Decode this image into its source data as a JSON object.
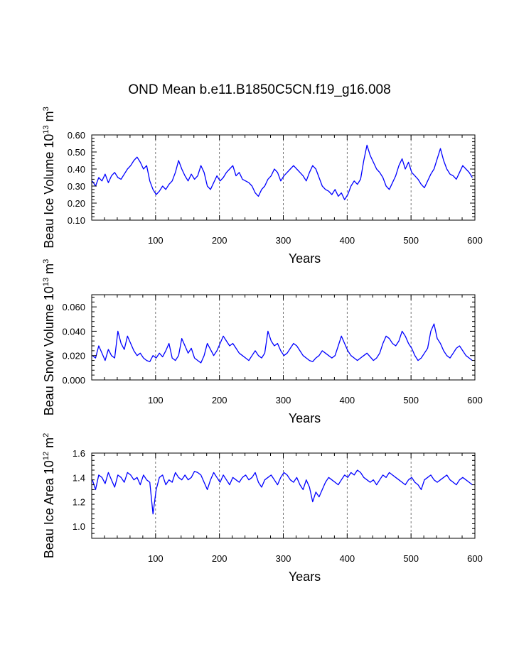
{
  "figure": {
    "title": "OND Mean b.e11.B1850C5CN.f19_g16.008"
  },
  "chart_data": [
    {
      "type": "line",
      "id": "ice-volume",
      "ylabel_main": "Beau Ice Volume 10",
      "ylabel_exp": "13",
      "ylabel_unit": " m",
      "ylabel_unit_exp": "3",
      "xlabel": "Years",
      "xlim": [
        0,
        600
      ],
      "ylim": [
        0.1,
        0.6
      ],
      "x_ticks": [
        100,
        200,
        300,
        400,
        500,
        600
      ],
      "y_ticks": [
        0.1,
        0.2,
        0.3,
        0.4,
        0.5,
        0.6
      ],
      "y_tick_labels": [
        "0.10",
        "0.20",
        "0.30",
        "0.40",
        "0.50",
        "0.60"
      ],
      "grid_x": [
        100,
        200,
        300,
        400,
        500
      ],
      "series": [
        {
          "name": "Beau Ice Volume",
          "color": "#0000ff",
          "x_start": 1,
          "x_step": 5,
          "values": [
            0.33,
            0.3,
            0.35,
            0.33,
            0.37,
            0.32,
            0.36,
            0.38,
            0.35,
            0.34,
            0.37,
            0.4,
            0.42,
            0.45,
            0.47,
            0.44,
            0.4,
            0.42,
            0.33,
            0.28,
            0.25,
            0.27,
            0.3,
            0.28,
            0.31,
            0.33,
            0.38,
            0.45,
            0.4,
            0.36,
            0.33,
            0.37,
            0.34,
            0.36,
            0.42,
            0.38,
            0.3,
            0.28,
            0.32,
            0.36,
            0.33,
            0.35,
            0.38,
            0.4,
            0.42,
            0.36,
            0.38,
            0.34,
            0.33,
            0.32,
            0.3,
            0.26,
            0.24,
            0.28,
            0.3,
            0.34,
            0.36,
            0.4,
            0.38,
            0.33,
            0.36,
            0.38,
            0.4,
            0.42,
            0.4,
            0.38,
            0.36,
            0.33,
            0.38,
            0.42,
            0.4,
            0.35,
            0.3,
            0.28,
            0.27,
            0.25,
            0.28,
            0.24,
            0.26,
            0.22,
            0.25,
            0.3,
            0.33,
            0.31,
            0.34,
            0.45,
            0.54,
            0.48,
            0.44,
            0.4,
            0.38,
            0.35,
            0.3,
            0.28,
            0.32,
            0.36,
            0.42,
            0.46,
            0.4,
            0.44,
            0.38,
            0.36,
            0.34,
            0.31,
            0.29,
            0.33,
            0.37,
            0.4,
            0.46,
            0.52,
            0.45,
            0.4,
            0.37,
            0.36,
            0.34,
            0.38,
            0.42,
            0.4,
            0.38,
            0.35
          ]
        }
      ]
    },
    {
      "type": "line",
      "id": "snow-volume",
      "ylabel_main": "Beau Snow Volume 10",
      "ylabel_exp": "13",
      "ylabel_unit": " m",
      "ylabel_unit_exp": "3",
      "xlabel": "Years",
      "xlim": [
        0,
        600
      ],
      "ylim": [
        0.0,
        0.07
      ],
      "x_ticks": [
        100,
        200,
        300,
        400,
        500,
        600
      ],
      "y_ticks": [
        0.0,
        0.02,
        0.04,
        0.06
      ],
      "y_tick_labels": [
        "0.000",
        "0.020",
        "0.040",
        "0.060"
      ],
      "grid_x": [
        100,
        200,
        300,
        400,
        500
      ],
      "series": [
        {
          "name": "Beau Snow Volume",
          "color": "#0000ff",
          "x_start": 1,
          "x_step": 5,
          "values": [
            0.02,
            0.018,
            0.028,
            0.022,
            0.016,
            0.025,
            0.02,
            0.018,
            0.04,
            0.03,
            0.025,
            0.036,
            0.03,
            0.024,
            0.02,
            0.022,
            0.018,
            0.016,
            0.015,
            0.02,
            0.018,
            0.022,
            0.019,
            0.024,
            0.03,
            0.018,
            0.016,
            0.02,
            0.034,
            0.028,
            0.022,
            0.026,
            0.018,
            0.016,
            0.014,
            0.02,
            0.03,
            0.025,
            0.02,
            0.024,
            0.03,
            0.036,
            0.032,
            0.028,
            0.03,
            0.026,
            0.022,
            0.02,
            0.018,
            0.016,
            0.02,
            0.024,
            0.02,
            0.018,
            0.022,
            0.04,
            0.032,
            0.028,
            0.03,
            0.024,
            0.02,
            0.022,
            0.026,
            0.03,
            0.028,
            0.024,
            0.02,
            0.018,
            0.016,
            0.015,
            0.018,
            0.02,
            0.024,
            0.022,
            0.02,
            0.018,
            0.02,
            0.028,
            0.036,
            0.03,
            0.024,
            0.02,
            0.018,
            0.016,
            0.018,
            0.02,
            0.022,
            0.019,
            0.016,
            0.018,
            0.022,
            0.03,
            0.036,
            0.034,
            0.03,
            0.028,
            0.032,
            0.04,
            0.036,
            0.03,
            0.026,
            0.02,
            0.016,
            0.018,
            0.022,
            0.026,
            0.04,
            0.046,
            0.034,
            0.03,
            0.024,
            0.02,
            0.018,
            0.022,
            0.026,
            0.028,
            0.024,
            0.02,
            0.018,
            0.016
          ]
        }
      ]
    },
    {
      "type": "line",
      "id": "ice-area",
      "ylabel_main": "Beau Ice Area 10",
      "ylabel_exp": "12",
      "ylabel_unit": " m",
      "ylabel_unit_exp": "2",
      "xlabel": "Years",
      "xlim": [
        0,
        600
      ],
      "ylim": [
        0.9,
        1.6
      ],
      "x_ticks": [
        100,
        200,
        300,
        400,
        500,
        600
      ],
      "y_ticks": [
        1.0,
        1.2,
        1.4,
        1.6
      ],
      "y_tick_labels": [
        "1.0",
        "1.2",
        "1.4",
        "1.6"
      ],
      "grid_x": [
        100,
        200,
        300,
        400,
        500
      ],
      "series": [
        {
          "name": "Beau Ice Area",
          "color": "#0000ff",
          "x_start": 1,
          "x_step": 5,
          "values": [
            1.38,
            1.3,
            1.42,
            1.4,
            1.35,
            1.44,
            1.38,
            1.32,
            1.42,
            1.4,
            1.36,
            1.44,
            1.42,
            1.38,
            1.4,
            1.34,
            1.42,
            1.38,
            1.36,
            1.1,
            1.3,
            1.4,
            1.42,
            1.34,
            1.38,
            1.36,
            1.44,
            1.4,
            1.38,
            1.42,
            1.38,
            1.4,
            1.45,
            1.44,
            1.42,
            1.36,
            1.3,
            1.38,
            1.44,
            1.4,
            1.36,
            1.42,
            1.38,
            1.34,
            1.4,
            1.38,
            1.36,
            1.4,
            1.42,
            1.38,
            1.4,
            1.44,
            1.36,
            1.32,
            1.38,
            1.4,
            1.42,
            1.38,
            1.34,
            1.4,
            1.44,
            1.42,
            1.38,
            1.36,
            1.4,
            1.34,
            1.3,
            1.38,
            1.32,
            1.2,
            1.28,
            1.24,
            1.3,
            1.36,
            1.4,
            1.38,
            1.36,
            1.34,
            1.38,
            1.42,
            1.4,
            1.44,
            1.42,
            1.46,
            1.44,
            1.4,
            1.38,
            1.36,
            1.38,
            1.34,
            1.38,
            1.42,
            1.4,
            1.44,
            1.42,
            1.4,
            1.38,
            1.36,
            1.34,
            1.38,
            1.4,
            1.36,
            1.34,
            1.3,
            1.38,
            1.4,
            1.42,
            1.38,
            1.36,
            1.38,
            1.4,
            1.42,
            1.38,
            1.36,
            1.34,
            1.38,
            1.4,
            1.38,
            1.36,
            1.34
          ]
        }
      ]
    }
  ]
}
